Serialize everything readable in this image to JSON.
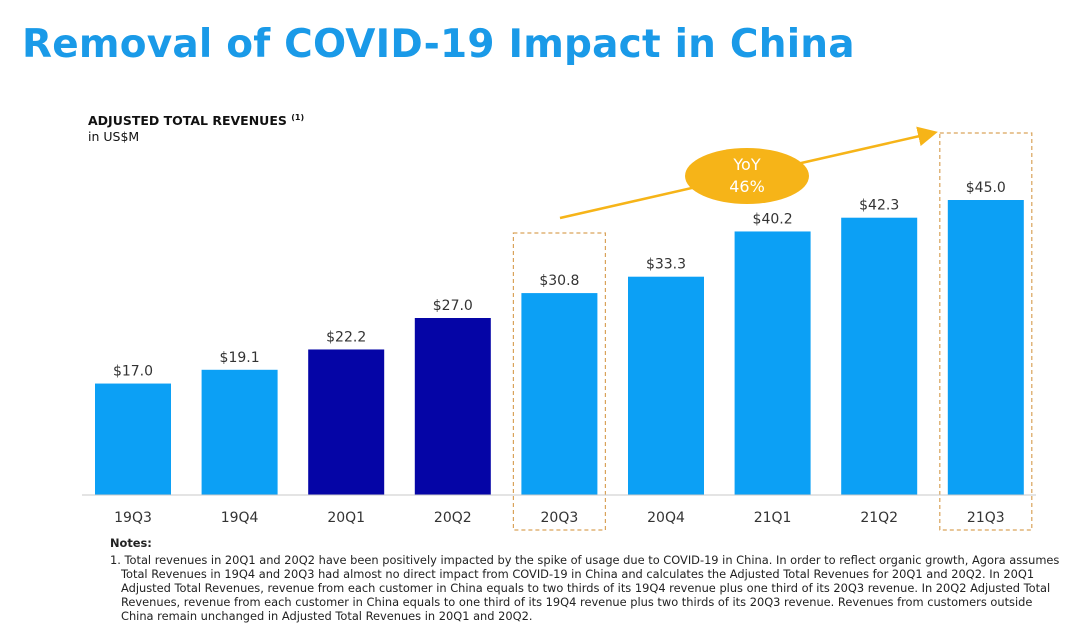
{
  "slide_title": "Removal of COVID-19 Impact in China",
  "chart_data": {
    "type": "bar",
    "title": "ADJUSTED TOTAL REVENUES",
    "title_footnote": "(1)",
    "subtitle": "in US$M",
    "categories": [
      "19Q3",
      "19Q4",
      "20Q1",
      "20Q2",
      "20Q3",
      "20Q4",
      "21Q1",
      "21Q2",
      "21Q3"
    ],
    "values": [
      17.0,
      19.1,
      22.2,
      27.0,
      30.8,
      33.3,
      40.2,
      42.3,
      45.0
    ],
    "value_labels": [
      "$17.0",
      "$19.1",
      "$22.2",
      "$27.0",
      "$30.8",
      "$33.3",
      "$40.2",
      "$42.3",
      "$45.0"
    ],
    "bar_colors": [
      "#0ca0f5",
      "#0ca0f5",
      "#0505a6",
      "#0505a6",
      "#0ca0f5",
      "#0ca0f5",
      "#0ca0f5",
      "#0ca0f5",
      "#0ca0f5"
    ],
    "highlighted_categories": [
      "20Q3",
      "21Q3"
    ],
    "highlight_color": "#d9a35a",
    "annotation": {
      "line1": "YoY",
      "line2": "46%",
      "color": "#f6b418",
      "text_color": "#ffffff"
    },
    "ylim": [
      0,
      45.0
    ],
    "grid": false
  },
  "notes": {
    "heading": "Notes:",
    "items": [
      "1. Total revenues in 20Q1 and 20Q2 have been positively impacted by the spike of usage due to COVID-19 in China. In order to reflect organic growth, Agora assumes Total Revenues in 19Q4 and 20Q3 had almost no direct impact from COVID-19 in China and calculates the Adjusted Total Revenues for 20Q1 and 20Q2. In 20Q1 Adjusted Total Revenues, revenue from each customer in China equals to two thirds of its 19Q4 revenue plus one third of its 20Q3 revenue. In 20Q2 Adjusted Total Revenues, revenue from each customer in China equals to one third of its 19Q4 revenue plus two thirds of its 20Q3 revenue. Revenues from customers outside China remain unchanged in Adjusted Total Revenues in 20Q1 and 20Q2."
    ]
  }
}
